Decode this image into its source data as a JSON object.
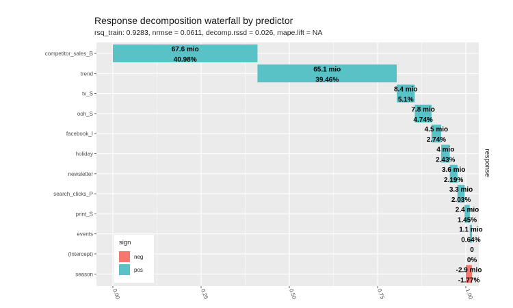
{
  "chart_data": {
    "type": "bar",
    "subtype": "waterfall-horizontal",
    "title": "Response decomposition waterfall by predictor",
    "subtitle": "rsq_train: 0.9283, nrmse = 0.0611, decomp.rssd = 0.026, mape.lift = NA",
    "xlabel": "",
    "ylabel": "response",
    "xlim": [
      -0.01,
      1.01
    ],
    "x_ticks": [
      "0.00",
      "0.25",
      "0.50",
      "0.75",
      "1.00"
    ],
    "x_tick_values": [
      0,
      0.25,
      0.5,
      0.75,
      1.0
    ],
    "grid": true,
    "legend": {
      "title": "sign",
      "placement": "bottom-left",
      "items": [
        {
          "label": "neg",
          "color": "#F8766D"
        },
        {
          "label": "pos",
          "color": "#59C2C7"
        }
      ]
    },
    "categories": [
      "competitor_sales_B",
      "trend",
      "tv_S",
      "ooh_S",
      "facebook_I",
      "holiday",
      "newsletter",
      "search_clicks_P",
      "print_S",
      "events",
      "(Intercept)",
      "season"
    ],
    "bars": [
      {
        "category": "competitor_sales_B",
        "start": 0.0,
        "end": 0.4098,
        "sign": "pos",
        "value_label": "67.6 mio",
        "pct_label": "40.98%"
      },
      {
        "category": "trend",
        "start": 0.4098,
        "end": 0.8044,
        "sign": "pos",
        "value_label": "65.1 mio",
        "pct_label": "39.46%"
      },
      {
        "category": "tv_S",
        "start": 0.8044,
        "end": 0.8554,
        "sign": "pos",
        "value_label": "8.4 mio",
        "pct_label": "5.1%"
      },
      {
        "category": "ooh_S",
        "start": 0.8554,
        "end": 0.9028,
        "sign": "pos",
        "value_label": "7.8 mio",
        "pct_label": "4.74%"
      },
      {
        "category": "facebook_I",
        "start": 0.9028,
        "end": 0.9302,
        "sign": "pos",
        "value_label": "4.5 mio",
        "pct_label": "2.74%"
      },
      {
        "category": "holiday",
        "start": 0.9302,
        "end": 0.9545,
        "sign": "pos",
        "value_label": "4 mio",
        "pct_label": "2.43%"
      },
      {
        "category": "newsletter",
        "start": 0.9545,
        "end": 0.9764,
        "sign": "pos",
        "value_label": "3.6 mio",
        "pct_label": "2.19%"
      },
      {
        "category": "search_clicks_P",
        "start": 0.9764,
        "end": 0.9967,
        "sign": "pos",
        "value_label": "3.3 mio",
        "pct_label": "2.03%"
      },
      {
        "category": "print_S",
        "start": 0.9967,
        "end": 1.0112,
        "sign": "pos",
        "value_label": "2.4 mio",
        "pct_label": "1.45%"
      },
      {
        "category": "events",
        "start": 1.0112,
        "end": 1.0176,
        "sign": "pos",
        "value_label": "1.1 mio",
        "pct_label": "0.64%"
      },
      {
        "category": "(Intercept)",
        "start": 1.0176,
        "end": 1.0176,
        "sign": "pos",
        "value_label": "0",
        "pct_label": "0%"
      },
      {
        "category": "season",
        "start": 1.0176,
        "end": 1.0,
        "sign": "neg",
        "value_label": "-2.9 mio",
        "pct_label": "-1.77%"
      }
    ]
  }
}
